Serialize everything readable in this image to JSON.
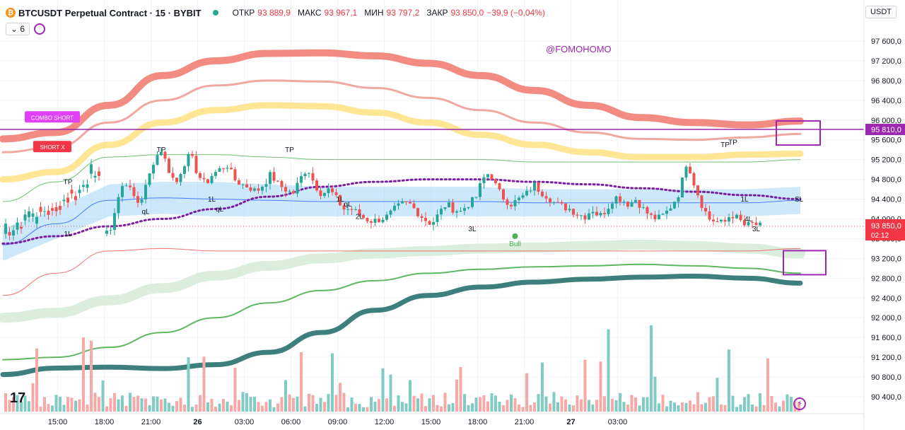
{
  "header": {
    "symbol": "BTCUSDT Perpetual Contract · 15 · BYBIT",
    "open_label": "ОТКР",
    "open": "93 889,9",
    "high_label": "МАКС",
    "high": "93 967,1",
    "low_label": "МИН",
    "low": "93 797,2",
    "close_label": "ЗАКР",
    "close": "93 850,0",
    "change": "−39,9 (−0,04%)",
    "currency": "USDT",
    "indicator_count": "6",
    "watermark": "@FOMOHOMO"
  },
  "colors": {
    "up": "#26a69a",
    "down": "#ef5350",
    "accent": "#9c27b0",
    "upper_band": "#f28b82",
    "lower_band": "#3d7f7a",
    "yellow_band": "#ffe38a",
    "cloud": "#90cdf4"
  },
  "chart_data": {
    "type": "line",
    "ylim": [
      90200,
      97800
    ],
    "y_ticks": [
      97600,
      97200,
      96800,
      96400,
      96000,
      95600,
      95200,
      94800,
      94400,
      94000,
      93600,
      93200,
      92800,
      92400,
      92000,
      91600,
      91200,
      90800,
      90400
    ],
    "y_tick_labels": [
      "97 600,0",
      "97 200,0",
      "96 800,0",
      "96 400,0",
      "96 000,0",
      "95 600,0",
      "95 200,0",
      "94 800,0",
      "94 400,0",
      "94 000,0",
      "93 600,0",
      "93 200,0",
      "92 800,0",
      "92 400,0",
      "92 000,0",
      "91 600,0",
      "91 200,0",
      "90 800,0",
      "90 400,0"
    ],
    "x_ticks": [
      "15:00",
      "18:00",
      "21:00",
      "26",
      "03:00",
      "06:00",
      "09:00",
      "12:00",
      "15:00",
      "18:00",
      "21:00",
      "27",
      "03:00"
    ],
    "x_tick_index": [
      5,
      17,
      29,
      41,
      53,
      65,
      77,
      89,
      101,
      113,
      125,
      137,
      149
    ],
    "candle_count": 170,
    "candle_close_path": [
      93700,
      93800,
      94400,
      94800,
      94500,
      94300,
      94700,
      95200,
      95400,
      95000,
      94700,
      95100,
      95300,
      94900,
      94700,
      94900,
      95000,
      95100,
      94800,
      94700,
      94650,
      94550,
      94700,
      94900,
      94700,
      94600,
      94500,
      94800,
      95050,
      94700,
      94500,
      94600,
      94400,
      94200,
      94200,
      94100,
      94000,
      93950,
      94000,
      94050,
      94200,
      94300,
      94300,
      94150,
      94000,
      93900,
      94100,
      94300,
      94200,
      94150,
      94300,
      94400,
      94800,
      94950,
      94600,
      94400,
      94300,
      94400,
      94500,
      94700,
      94550,
      94450,
      94300,
      94250,
      94200,
      94100,
      94050,
      94200,
      94050,
      94200,
      94450,
      94400,
      94300,
      94400,
      94200,
      94050,
      94000,
      94100,
      94300,
      94550,
      95200,
      94700,
      94300,
      94000,
      93950,
      93900,
      94100,
      94000,
      93850,
      93900,
      93850
    ],
    "price_line": 95810,
    "price_line_label": "95 810,0",
    "last_price": 93850,
    "last_price_label": "93 850,0",
    "countdown": "02:12",
    "upper_band_thick": [
      95620,
      95750,
      96300,
      96900,
      97200,
      97350,
      97360,
      97300,
      97150,
      96900,
      96600,
      96300,
      96050,
      95950,
      95900,
      95980
    ],
    "upper_band_thin": [
      95350,
      95450,
      95950,
      96400,
      96700,
      96800,
      96780,
      96650,
      96450,
      96200,
      95950,
      95750,
      95620,
      95600,
      95650,
      95720
    ],
    "yellow_band": [
      94800,
      94950,
      95500,
      95950,
      96200,
      96300,
      96280,
      96150,
      95950,
      95700,
      95500,
      95350,
      95250,
      95250,
      95300,
      95320
    ],
    "lower_band_light": [
      92000,
      92100,
      92350,
      92600,
      92850,
      93050,
      93200,
      93300,
      93350,
      93400,
      93420,
      93450,
      93480,
      93450,
      93400,
      93300
    ],
    "lower_band_mid": [
      91150,
      91200,
      91400,
      91700,
      92000,
      92300,
      92550,
      92750,
      92900,
      92980,
      93030,
      93050,
      93080,
      93050,
      93000,
      92900
    ],
    "lower_band_thick": [
      90850,
      90980,
      91000,
      90970,
      91050,
      91300,
      91700,
      92150,
      92450,
      92620,
      92720,
      92780,
      92820,
      92840,
      92800,
      92700
    ],
    "purple_dotted": [
      93500,
      93650,
      93850,
      94000,
      94200,
      94450,
      94650,
      94750,
      94800,
      94800,
      94750,
      94700,
      94620,
      94550,
      94480,
      94400
    ],
    "cloud_top": [
      93800,
      94200,
      94700,
      94750,
      94750,
      94700,
      94650,
      94650,
      94650,
      94650,
      94600,
      94600,
      94600,
      94600,
      94600,
      94650
    ],
    "cloud_bottom": [
      93150,
      93600,
      94050,
      94100,
      94050,
      94050,
      94050,
      94050,
      94050,
      94050,
      94050,
      94050,
      94050,
      94050,
      94050,
      94100
    ],
    "volume_peak_index": [
      20,
      22,
      155,
      166
    ],
    "labels": [
      {
        "text": "COMBO SHORT",
        "i": 12,
        "price": 96050,
        "kind": "magenta"
      },
      {
        "text": "SHORT X",
        "i": 12,
        "price": 95450,
        "kind": "red"
      },
      {
        "text": "TP",
        "i": 16,
        "price": 94700,
        "kind": "plain"
      },
      {
        "text": "TP",
        "i": 40,
        "price": 95350,
        "kind": "plain"
      },
      {
        "text": "TP",
        "i": 73,
        "price": 95350,
        "kind": "plain"
      },
      {
        "text": "TP",
        "i": 180,
        "price": 95450,
        "kind": "plain"
      },
      {
        "text": "TP",
        "i": 182,
        "price": 95500,
        "kind": "plain"
      },
      {
        "text": "1L",
        "i": 16,
        "price": 93650,
        "kind": "plain"
      },
      {
        "text": "qL",
        "i": 36,
        "price": 94100,
        "kind": "plain"
      },
      {
        "text": "1L",
        "i": 53,
        "price": 94350,
        "kind": "plain"
      },
      {
        "text": "qL",
        "i": 55,
        "price": 94150,
        "kind": "plain"
      },
      {
        "text": "1L",
        "i": 86,
        "price": 94350,
        "kind": "plain"
      },
      {
        "text": "qL",
        "i": 88,
        "price": 94250,
        "kind": "plain"
      },
      {
        "text": "2L",
        "i": 91,
        "price": 94000,
        "kind": "plain"
      },
      {
        "text": "3L",
        "i": 120,
        "price": 93750,
        "kind": "plain"
      },
      {
        "text": "Bull",
        "i": 131,
        "price": 93450,
        "kind": "green"
      },
      {
        "text": "1L",
        "i": 185,
        "price": 94350,
        "kind": "plain"
      },
      {
        "text": "4L",
        "i": 186,
        "price": 93950,
        "kind": "plain"
      },
      {
        "text": "3L",
        "i": 188,
        "price": 93750,
        "kind": "plain"
      },
      {
        "text": "SL",
        "i": 203,
        "price": 94350,
        "kind": "plain"
      }
    ]
  }
}
